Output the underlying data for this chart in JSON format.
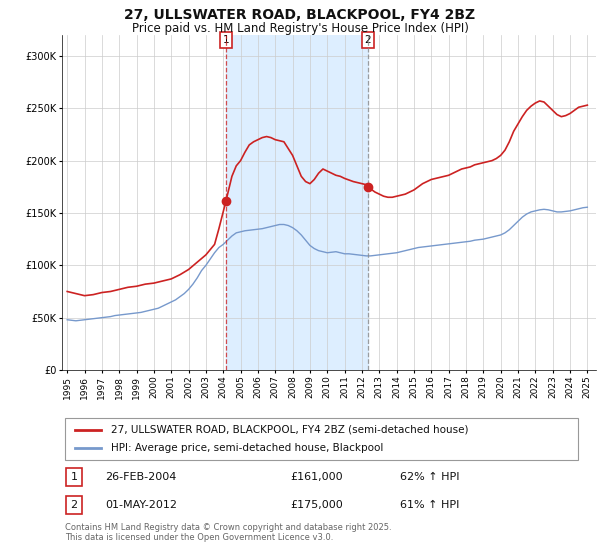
{
  "title": "27, ULLSWATER ROAD, BLACKPOOL, FY4 2BZ",
  "subtitle": "Price paid vs. HM Land Registry's House Price Index (HPI)",
  "title_fontsize": 10,
  "subtitle_fontsize": 8.5,
  "background_color": "#ffffff",
  "plot_bg_color": "#ffffff",
  "grid_color": "#cccccc",
  "hpi_line_color": "#7799cc",
  "price_line_color": "#cc2222",
  "shaded_region_color": "#ddeeff",
  "sale1": {
    "date_num": 2004.15,
    "price": 161000,
    "label": "1",
    "date_str": "26-FEB-2004",
    "pct": "62%"
  },
  "sale2": {
    "date_num": 2012.33,
    "price": 175000,
    "label": "2",
    "date_str": "01-MAY-2012",
    "pct": "61%"
  },
  "ylim": [
    0,
    320000
  ],
  "yticks": [
    0,
    50000,
    100000,
    150000,
    200000,
    250000,
    300000
  ],
  "ytick_labels": [
    "£0",
    "£50K",
    "£100K",
    "£150K",
    "£200K",
    "£250K",
    "£300K"
  ],
  "xlim_start": 1994.7,
  "xlim_end": 2025.5,
  "xticks": [
    1995,
    1996,
    1997,
    1998,
    1999,
    2000,
    2001,
    2002,
    2003,
    2004,
    2005,
    2006,
    2007,
    2008,
    2009,
    2010,
    2011,
    2012,
    2013,
    2014,
    2015,
    2016,
    2017,
    2018,
    2019,
    2020,
    2021,
    2022,
    2023,
    2024,
    2025
  ],
  "legend_label_price": "27, ULLSWATER ROAD, BLACKPOOL, FY4 2BZ (semi-detached house)",
  "legend_label_hpi": "HPI: Average price, semi-detached house, Blackpool",
  "footnote": "Contains HM Land Registry data © Crown copyright and database right 2025.\nThis data is licensed under the Open Government Licence v3.0.",
  "hpi_data": [
    [
      1995.0,
      48000
    ],
    [
      1995.25,
      47500
    ],
    [
      1995.5,
      47000
    ],
    [
      1995.75,
      47500
    ],
    [
      1996.0,
      48000
    ],
    [
      1996.25,
      48500
    ],
    [
      1996.5,
      49000
    ],
    [
      1996.75,
      49500
    ],
    [
      1997.0,
      50000
    ],
    [
      1997.25,
      50500
    ],
    [
      1997.5,
      51000
    ],
    [
      1997.75,
      52000
    ],
    [
      1998.0,
      52500
    ],
    [
      1998.25,
      53000
    ],
    [
      1998.5,
      53500
    ],
    [
      1998.75,
      54000
    ],
    [
      1999.0,
      54500
    ],
    [
      1999.25,
      55000
    ],
    [
      1999.5,
      56000
    ],
    [
      1999.75,
      57000
    ],
    [
      2000.0,
      58000
    ],
    [
      2000.25,
      59000
    ],
    [
      2000.5,
      61000
    ],
    [
      2000.75,
      63000
    ],
    [
      2001.0,
      65000
    ],
    [
      2001.25,
      67000
    ],
    [
      2001.5,
      70000
    ],
    [
      2001.75,
      73000
    ],
    [
      2002.0,
      77000
    ],
    [
      2002.25,
      82000
    ],
    [
      2002.5,
      88000
    ],
    [
      2002.75,
      95000
    ],
    [
      2003.0,
      100000
    ],
    [
      2003.25,
      106000
    ],
    [
      2003.5,
      112000
    ],
    [
      2003.75,
      117000
    ],
    [
      2004.0,
      120000
    ],
    [
      2004.25,
      124000
    ],
    [
      2004.5,
      128000
    ],
    [
      2004.75,
      131000
    ],
    [
      2005.0,
      132000
    ],
    [
      2005.25,
      133000
    ],
    [
      2005.5,
      133500
    ],
    [
      2005.75,
      134000
    ],
    [
      2006.0,
      134500
    ],
    [
      2006.25,
      135000
    ],
    [
      2006.5,
      136000
    ],
    [
      2006.75,
      137000
    ],
    [
      2007.0,
      138000
    ],
    [
      2007.25,
      139000
    ],
    [
      2007.5,
      139000
    ],
    [
      2007.75,
      138000
    ],
    [
      2008.0,
      136000
    ],
    [
      2008.25,
      133000
    ],
    [
      2008.5,
      129000
    ],
    [
      2008.75,
      124000
    ],
    [
      2009.0,
      119000
    ],
    [
      2009.25,
      116000
    ],
    [
      2009.5,
      114000
    ],
    [
      2009.75,
      113000
    ],
    [
      2010.0,
      112000
    ],
    [
      2010.25,
      112500
    ],
    [
      2010.5,
      113000
    ],
    [
      2010.75,
      112000
    ],
    [
      2011.0,
      111000
    ],
    [
      2011.25,
      111000
    ],
    [
      2011.5,
      110500
    ],
    [
      2011.75,
      110000
    ],
    [
      2012.0,
      109500
    ],
    [
      2012.25,
      109000
    ],
    [
      2012.5,
      109000
    ],
    [
      2012.75,
      109500
    ],
    [
      2013.0,
      110000
    ],
    [
      2013.25,
      110500
    ],
    [
      2013.5,
      111000
    ],
    [
      2013.75,
      111500
    ],
    [
      2014.0,
      112000
    ],
    [
      2014.25,
      113000
    ],
    [
      2014.5,
      114000
    ],
    [
      2014.75,
      115000
    ],
    [
      2015.0,
      116000
    ],
    [
      2015.25,
      117000
    ],
    [
      2015.5,
      117500
    ],
    [
      2015.75,
      118000
    ],
    [
      2016.0,
      118500
    ],
    [
      2016.25,
      119000
    ],
    [
      2016.5,
      119500
    ],
    [
      2016.75,
      120000
    ],
    [
      2017.0,
      120500
    ],
    [
      2017.25,
      121000
    ],
    [
      2017.5,
      121500
    ],
    [
      2017.75,
      122000
    ],
    [
      2018.0,
      122500
    ],
    [
      2018.25,
      123000
    ],
    [
      2018.5,
      124000
    ],
    [
      2018.75,
      124500
    ],
    [
      2019.0,
      125000
    ],
    [
      2019.25,
      126000
    ],
    [
      2019.5,
      127000
    ],
    [
      2019.75,
      128000
    ],
    [
      2020.0,
      129000
    ],
    [
      2020.25,
      131000
    ],
    [
      2020.5,
      134000
    ],
    [
      2020.75,
      138000
    ],
    [
      2021.0,
      142000
    ],
    [
      2021.25,
      146000
    ],
    [
      2021.5,
      149000
    ],
    [
      2021.75,
      151000
    ],
    [
      2022.0,
      152000
    ],
    [
      2022.25,
      153000
    ],
    [
      2022.5,
      153500
    ],
    [
      2022.75,
      153000
    ],
    [
      2023.0,
      152000
    ],
    [
      2023.25,
      151000
    ],
    [
      2023.5,
      151000
    ],
    [
      2023.75,
      151500
    ],
    [
      2024.0,
      152000
    ],
    [
      2024.25,
      153000
    ],
    [
      2024.5,
      154000
    ],
    [
      2024.75,
      155000
    ],
    [
      2025.0,
      155500
    ]
  ],
  "price_data": [
    [
      1995.0,
      75000
    ],
    [
      1995.5,
      73000
    ],
    [
      1996.0,
      71000
    ],
    [
      1996.5,
      72000
    ],
    [
      1997.0,
      74000
    ],
    [
      1997.5,
      75000
    ],
    [
      1998.0,
      77000
    ],
    [
      1998.5,
      79000
    ],
    [
      1999.0,
      80000
    ],
    [
      1999.5,
      82000
    ],
    [
      2000.0,
      83000
    ],
    [
      2000.5,
      85000
    ],
    [
      2001.0,
      87000
    ],
    [
      2001.5,
      91000
    ],
    [
      2002.0,
      96000
    ],
    [
      2002.5,
      103000
    ],
    [
      2003.0,
      110000
    ],
    [
      2003.5,
      120000
    ],
    [
      2003.75,
      135000
    ],
    [
      2004.15,
      161000
    ],
    [
      2004.5,
      185000
    ],
    [
      2004.75,
      195000
    ],
    [
      2005.0,
      200000
    ],
    [
      2005.25,
      208000
    ],
    [
      2005.5,
      215000
    ],
    [
      2005.75,
      218000
    ],
    [
      2006.0,
      220000
    ],
    [
      2006.25,
      222000
    ],
    [
      2006.5,
      223000
    ],
    [
      2006.75,
      222000
    ],
    [
      2007.0,
      220000
    ],
    [
      2007.25,
      219000
    ],
    [
      2007.5,
      218000
    ],
    [
      2008.0,
      205000
    ],
    [
      2008.25,
      195000
    ],
    [
      2008.5,
      185000
    ],
    [
      2008.75,
      180000
    ],
    [
      2009.0,
      178000
    ],
    [
      2009.25,
      182000
    ],
    [
      2009.5,
      188000
    ],
    [
      2009.75,
      192000
    ],
    [
      2010.0,
      190000
    ],
    [
      2010.25,
      188000
    ],
    [
      2010.5,
      186000
    ],
    [
      2010.75,
      185000
    ],
    [
      2011.0,
      183000
    ],
    [
      2011.5,
      180000
    ],
    [
      2012.0,
      178000
    ],
    [
      2012.25,
      177000
    ],
    [
      2012.33,
      175000
    ],
    [
      2012.5,
      173000
    ],
    [
      2012.75,
      170000
    ],
    [
      2013.0,
      168000
    ],
    [
      2013.25,
      166000
    ],
    [
      2013.5,
      165000
    ],
    [
      2013.75,
      165000
    ],
    [
      2014.0,
      166000
    ],
    [
      2014.25,
      167000
    ],
    [
      2014.5,
      168000
    ],
    [
      2014.75,
      170000
    ],
    [
      2015.0,
      172000
    ],
    [
      2015.25,
      175000
    ],
    [
      2015.5,
      178000
    ],
    [
      2015.75,
      180000
    ],
    [
      2016.0,
      182000
    ],
    [
      2016.25,
      183000
    ],
    [
      2016.5,
      184000
    ],
    [
      2016.75,
      185000
    ],
    [
      2017.0,
      186000
    ],
    [
      2017.25,
      188000
    ],
    [
      2017.5,
      190000
    ],
    [
      2017.75,
      192000
    ],
    [
      2018.0,
      193000
    ],
    [
      2018.25,
      194000
    ],
    [
      2018.5,
      196000
    ],
    [
      2018.75,
      197000
    ],
    [
      2019.0,
      198000
    ],
    [
      2019.25,
      199000
    ],
    [
      2019.5,
      200000
    ],
    [
      2019.75,
      202000
    ],
    [
      2020.0,
      205000
    ],
    [
      2020.25,
      210000
    ],
    [
      2020.5,
      218000
    ],
    [
      2020.75,
      228000
    ],
    [
      2021.0,
      235000
    ],
    [
      2021.25,
      242000
    ],
    [
      2021.5,
      248000
    ],
    [
      2021.75,
      252000
    ],
    [
      2022.0,
      255000
    ],
    [
      2022.25,
      257000
    ],
    [
      2022.5,
      256000
    ],
    [
      2022.75,
      252000
    ],
    [
      2023.0,
      248000
    ],
    [
      2023.25,
      244000
    ],
    [
      2023.5,
      242000
    ],
    [
      2023.75,
      243000
    ],
    [
      2024.0,
      245000
    ],
    [
      2024.25,
      248000
    ],
    [
      2024.5,
      251000
    ],
    [
      2024.75,
      252000
    ],
    [
      2025.0,
      253000
    ]
  ]
}
